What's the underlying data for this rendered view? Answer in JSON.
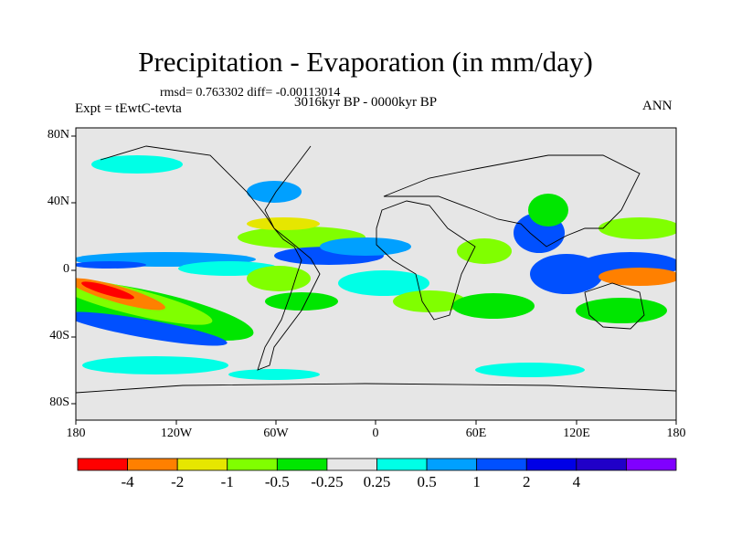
{
  "title": "Precipitation - Evaporation (in mm/day)",
  "stats": "rmsd= 0.763302 diff= -0.00113014",
  "period": "3016kyr BP - 0000kyr BP",
  "expt": "Expt = tEwtC-tevta",
  "season": "ANN",
  "lat_labels": [
    "80N",
    "40N",
    "0",
    "40S",
    "80S"
  ],
  "lon_labels": [
    "180",
    "120W",
    "60W",
    "0",
    "60E",
    "120E",
    "180"
  ],
  "colorbar": {
    "colors": [
      "#ff0000",
      "#ff8000",
      "#e6e600",
      "#80ff00",
      "#00e600",
      "#e6e6e6",
      "#00ffe6",
      "#00a0ff",
      "#0050ff",
      "#0000e6",
      "#2000c8",
      "#8000ff"
    ],
    "labels": [
      "-4",
      "-2",
      "-1",
      "-0.5",
      "-0.25",
      "0.25",
      "0.5",
      "1",
      "2",
      "4"
    ]
  }
}
